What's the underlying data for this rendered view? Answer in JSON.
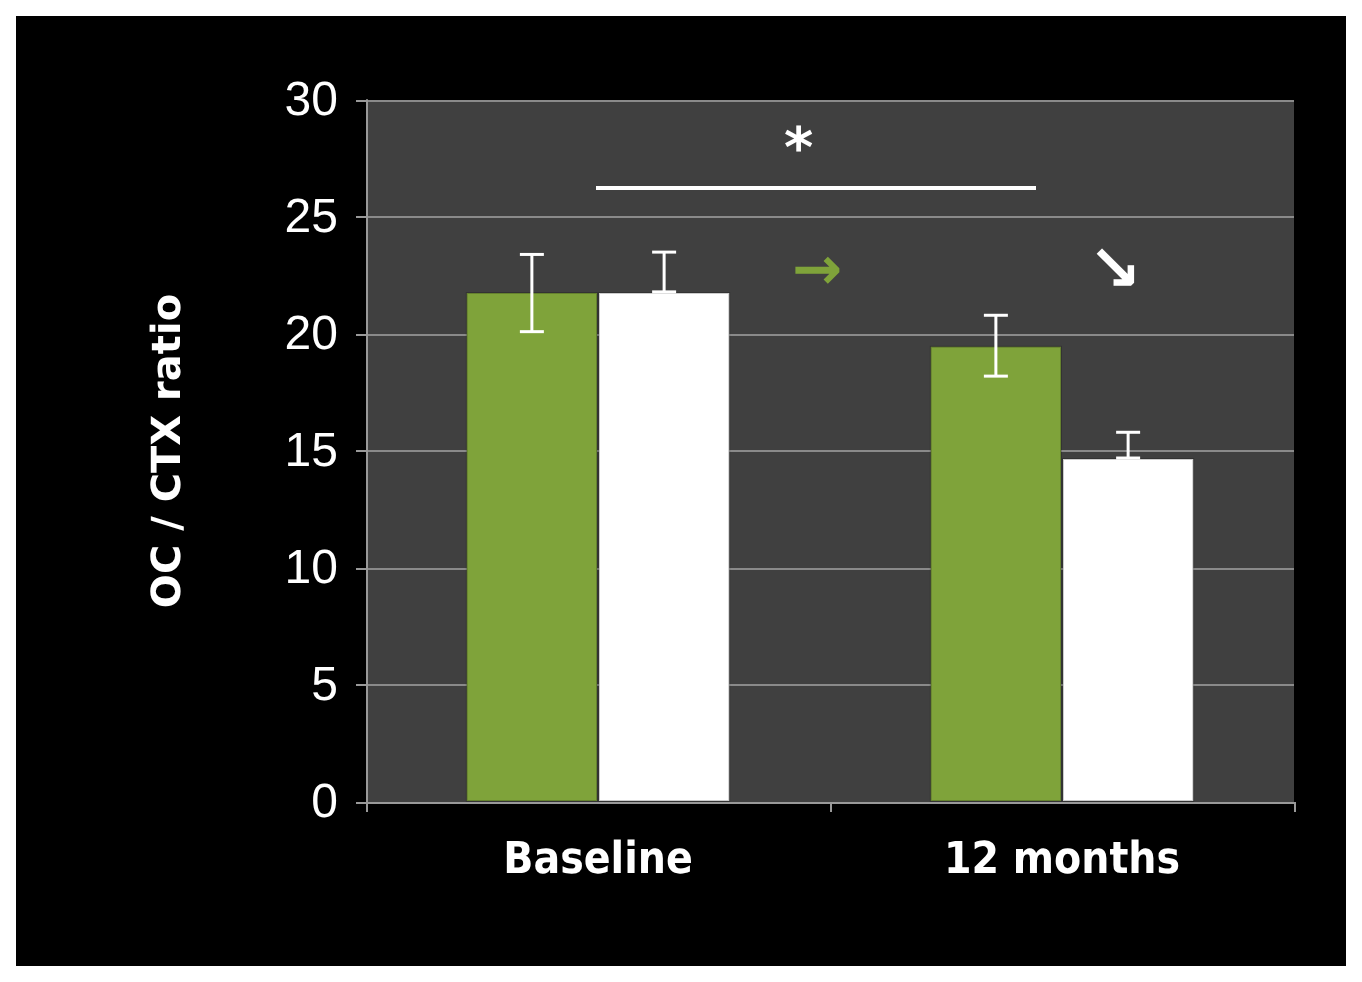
{
  "chart_data": {
    "type": "bar",
    "ylabel": "OC / CTX ratio",
    "categories": [
      "Baseline",
      "12 months"
    ],
    "series": [
      {
        "color": "#7fa33a",
        "values": [
          21.8,
          19.5
        ],
        "errors": [
          [
            20.1,
            23.4
          ],
          [
            18.2,
            20.8
          ]
        ]
      },
      {
        "color": "#ffffff",
        "values": [
          21.8,
          14.7
        ],
        "errors": [
          [
            21.8,
            23.5
          ],
          [
            14.7,
            15.8
          ]
        ]
      }
    ],
    "ylim": [
      0,
      30
    ],
    "yticks": [
      0,
      5,
      10,
      15,
      20,
      25,
      30
    ],
    "grid": "y",
    "annotations": [
      "*",
      "→",
      "↘"
    ]
  }
}
